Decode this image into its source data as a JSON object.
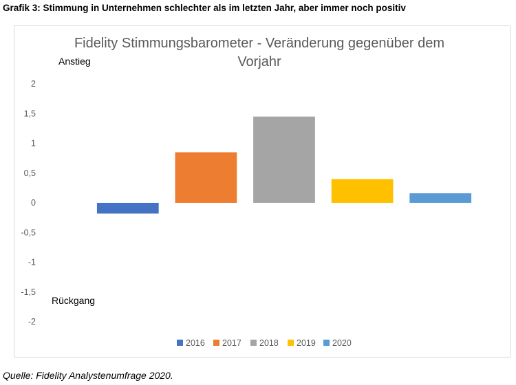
{
  "heading": "Grafik 3: Stimmung in Unternehmen schlechter als im letzten Jahr, aber immer noch positiv",
  "source": "Quelle: Fidelity Analystenumfrage 2020.",
  "chart_data": {
    "type": "bar",
    "title": [
      "Fidelity Stimmungsbarometer - Veränderung gegenüber dem",
      "Vorjahr"
    ],
    "categories": [
      "2016",
      "2017",
      "2018",
      "2019",
      "2020"
    ],
    "values": [
      -0.18,
      0.85,
      1.45,
      0.4,
      0.16
    ],
    "colors": [
      "#4472c4",
      "#ed7d31",
      "#a5a5a5",
      "#ffc000",
      "#5b9bd5"
    ],
    "ylim": [
      -2,
      2
    ],
    "yticks": [
      "2",
      "1,5",
      "1",
      "0,5",
      "0",
      "-0,5",
      "-1",
      "-1,5",
      "-2"
    ],
    "ytick_values": [
      2,
      1.5,
      1,
      0.5,
      0,
      -0.5,
      -1,
      -1.5,
      -2
    ],
    "annotations": {
      "top": "Anstieg",
      "bottom": "Rückgang"
    },
    "grid": false,
    "legend_position": "bottom"
  }
}
